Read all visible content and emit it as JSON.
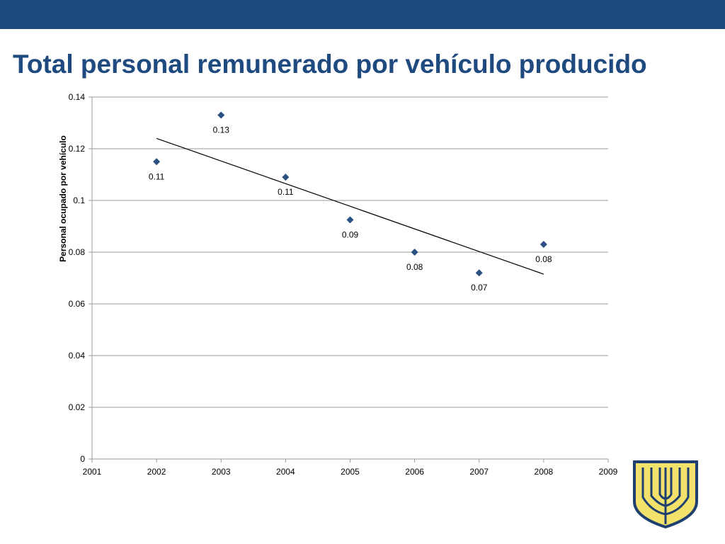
{
  "slide": {
    "title": "Total personal remunerado  por vehículo producido"
  },
  "colors": {
    "band": "#1f4a7f",
    "title": "#1f4a7f",
    "marker": "#2b5183",
    "gridline": "#9a9a9a",
    "trendline": "#000000",
    "logo_fill": "#f2e26b",
    "logo_stroke": "#1f3f6e"
  },
  "logo": {
    "icon": "university-crest-icon"
  },
  "chart_data": {
    "type": "scatter",
    "title": "",
    "xlabel": "",
    "ylabel": "Personal ocupado por vehículo",
    "xlim": [
      2001,
      2009
    ],
    "ylim": [
      0,
      0.14
    ],
    "x_ticks": [
      "2001",
      "2002",
      "2003",
      "2004",
      "2005",
      "2006",
      "2007",
      "2008",
      "2009"
    ],
    "y_ticks": [
      "0",
      "0.02",
      "0.04",
      "0.06",
      "0.08",
      "0.1",
      "0.12",
      "0.14"
    ],
    "grid": true,
    "legend": "none",
    "series": [
      {
        "marker": "diamond",
        "x": [
          2002,
          2003,
          2004,
          2005,
          2006,
          2007,
          2008
        ],
        "y": [
          0.115,
          0.133,
          0.109,
          0.0925,
          0.08,
          0.072,
          0.083
        ],
        "labels": [
          "0.11",
          "0.13",
          "0.11",
          "0.09",
          "0.08",
          "0.07",
          "0.08"
        ]
      }
    ],
    "trendline": {
      "type": "linear",
      "x": [
        2002,
        2008
      ],
      "y": [
        0.124,
        0.0715
      ]
    }
  }
}
